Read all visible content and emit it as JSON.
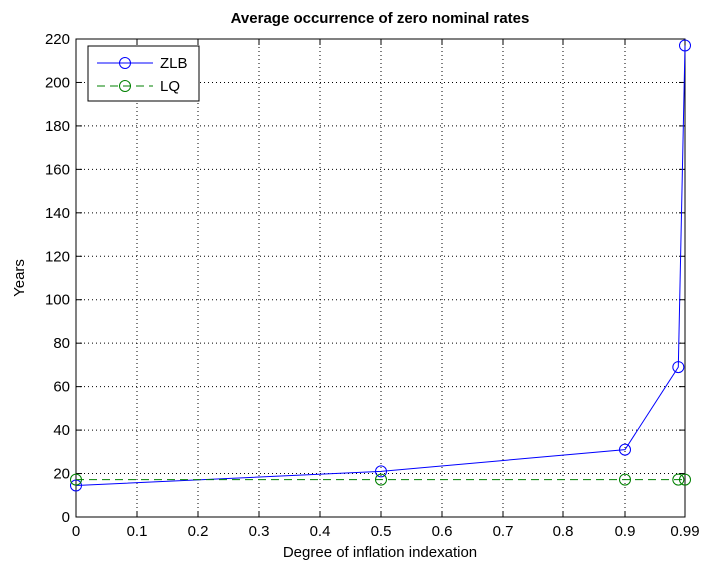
{
  "chart_data": {
    "type": "line",
    "title": "Average occurrence of zero nominal rates",
    "xlabel": "Degree of inflation indexation",
    "ylabel": "Years",
    "ylim": [
      0,
      220
    ],
    "yticks": [
      0,
      20,
      40,
      60,
      80,
      100,
      120,
      140,
      160,
      180,
      200,
      220
    ],
    "xticks": [
      "0",
      "0.1",
      "0.2",
      "0.3",
      "0.4",
      "0.5",
      "0.6",
      "0.7",
      "0.8",
      "0.9",
      "0.99"
    ],
    "x": [
      0,
      0.5,
      0.9,
      0.98,
      0.99
    ],
    "grid": true,
    "legend_location": "top-left",
    "series": [
      {
        "name": "ZLB",
        "values": [
          14.5,
          21,
          31,
          69,
          217
        ],
        "color": "#0000ff",
        "line_style": "solid",
        "marker": "circle"
      },
      {
        "name": "LQ",
        "values": [
          17.2,
          17.2,
          17.2,
          17.2,
          17.2
        ],
        "color": "#008000",
        "line_style": "dashed",
        "marker": "circle"
      }
    ]
  }
}
